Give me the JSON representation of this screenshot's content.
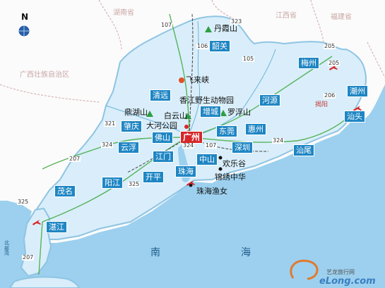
{
  "compass": "N",
  "provinces": [
    "湖南省",
    "江西省",
    "福建省",
    "广西壮族自治区"
  ],
  "cities": [
    "韶关",
    "梅州",
    "潮州",
    "汕头",
    "揭阳",
    "河源",
    "清远",
    "增城",
    "肇庆",
    "广州",
    "东莞",
    "惠州",
    "佛山",
    "云浮",
    "江门",
    "中山",
    "深圳",
    "汕尾",
    "开平",
    "珠海",
    "阳江",
    "茂名",
    "湛江"
  ],
  "pois": [
    "丹霞山",
    "飞来峡",
    "香江野生动物园",
    "鼎湖山",
    "白云山",
    "罗浮山",
    "大河公园",
    "欢乐谷",
    "锦绣中华",
    "珠海渔女"
  ],
  "roads": [
    "107",
    "323",
    "106",
    "205",
    "105",
    "206",
    "205",
    "321",
    "324",
    "324",
    "324",
    "207",
    "325",
    "325",
    "207",
    "107"
  ],
  "sea": [
    "南",
    "海"
  ],
  "side_label": "北部湾",
  "watermark": {
    "brand": "eLong.com",
    "subtitle": "艺龙旅行网"
  },
  "colors": {
    "sea": "#9cd0ee",
    "land": "#fdfdfd",
    "city": "#1f86c4",
    "capital": "#d7272a",
    "peak": "#2f9e44"
  }
}
